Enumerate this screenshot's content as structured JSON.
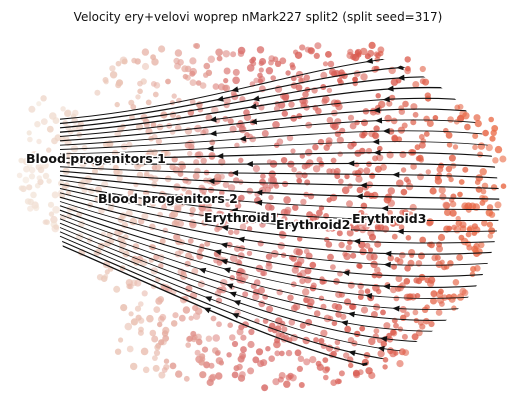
{
  "chart_data": {
    "type": "scatter",
    "title": "Velocity ery+velovi woprep nMark227 split2 (split seed=317)",
    "xlabel": "",
    "ylabel": "",
    "axes_visible": false,
    "grid": false,
    "legend": "none",
    "overlay": "velocity streamlines with arrowheads (black)",
    "colormap": [
      "#f2e4d8",
      "#e9bfb0",
      "#d9706e",
      "#d95a4e",
      "#ea6a45"
    ],
    "clusters": [
      {
        "name": "Blood progenitors 1"
      },
      {
        "name": "Blood progenitors 2"
      },
      {
        "name": "Erythroid1"
      },
      {
        "name": "Erythroid2"
      },
      {
        "name": "Erythroid3"
      }
    ]
  }
}
